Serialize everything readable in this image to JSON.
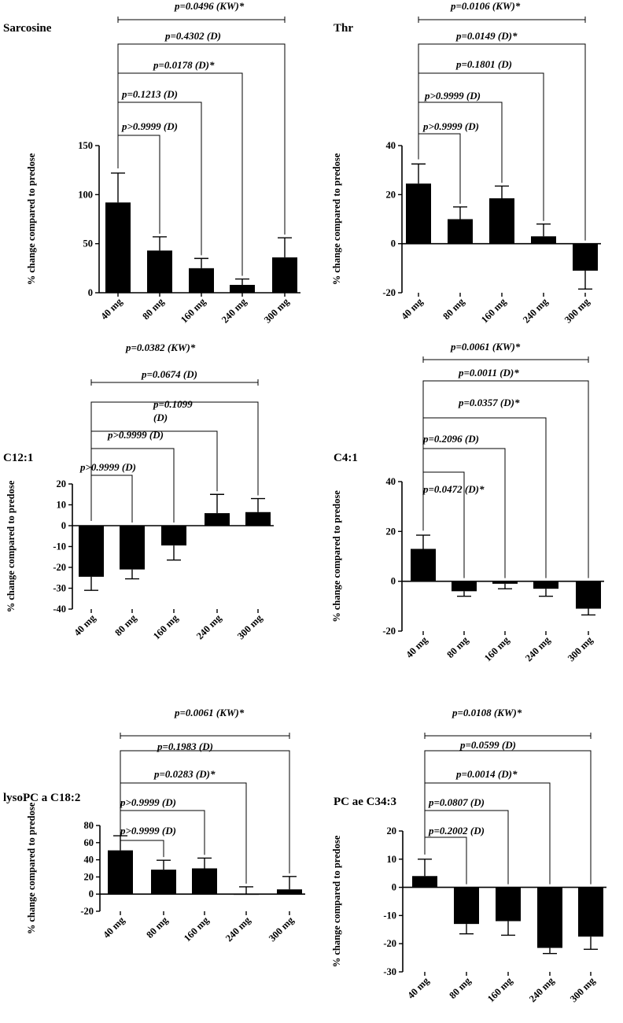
{
  "figure": {
    "categories": [
      "40 mg",
      "80 mg",
      "160 mg",
      "240 mg",
      "300 mg"
    ],
    "ylabel": "% change compared to predose"
  },
  "chart_data": [
    {
      "type": "bar",
      "title": "Sarcosine",
      "categories": [
        "40 mg",
        "80 mg",
        "160 mg",
        "240 mg",
        "300 mg"
      ],
      "values": [
        92,
        43,
        25,
        8,
        36
      ],
      "errors": [
        30,
        14,
        10,
        6,
        20
      ],
      "ylabel": "% change compared to predose",
      "ylim": [
        0,
        150
      ],
      "yticks": [
        0,
        50,
        100,
        150
      ],
      "comparisons": [
        {
          "label": "p>0.9999 (D)",
          "from": 0,
          "to": 1
        },
        {
          "label": "p=0.1213 (D)",
          "from": 0,
          "to": 2
        },
        {
          "label": "p=0.0178 (D)*",
          "from": 0,
          "to": 3
        },
        {
          "label": "p=0.4302 (D)",
          "from": 0,
          "to": 4
        },
        {
          "label": "p=0.0496 (KW)*",
          "from": 0,
          "to": 4,
          "overall": true
        }
      ]
    },
    {
      "type": "bar",
      "title": "Thr",
      "categories": [
        "40 mg",
        "80 mg",
        "160 mg",
        "240 mg",
        "300 mg"
      ],
      "values": [
        24.5,
        10,
        18.5,
        3,
        -11
      ],
      "errors": [
        8,
        5,
        5,
        5,
        7.5
      ],
      "ylabel": "% change compared to predose",
      "ylim": [
        -20,
        40
      ],
      "yticks": [
        -20,
        0,
        20,
        40
      ],
      "comparisons": [
        {
          "label": "p>0.9999 (D)",
          "from": 0,
          "to": 1
        },
        {
          "label": "p>0.9999 (D)",
          "from": 0,
          "to": 2
        },
        {
          "label": "p=0.1801 (D)",
          "from": 0,
          "to": 3
        },
        {
          "label": "p=0.0149 (D)*",
          "from": 0,
          "to": 4
        },
        {
          "label": "p=0.0106 (KW)*",
          "from": 0,
          "to": 4,
          "overall": true
        }
      ]
    },
    {
      "type": "bar",
      "title": "C12:1",
      "categories": [
        "40 mg",
        "80 mg",
        "160 mg",
        "240 mg",
        "300 mg"
      ],
      "values": [
        -24.5,
        -21,
        -9.5,
        6,
        6.5
      ],
      "errors": [
        6.5,
        4.5,
        7,
        9,
        6.5
      ],
      "ylabel": "% change compared to predose",
      "ylim": [
        -40,
        20
      ],
      "yticks": [
        -40,
        -30,
        -20,
        -10,
        0,
        10,
        20
      ],
      "comparisons": [
        {
          "label": "p>0.9999 (D)",
          "from": 0,
          "to": 1
        },
        {
          "label": "p>0.9999 (D)",
          "from": 0,
          "to": 2
        },
        {
          "label": "p=0.1099",
          "label2": "(D)",
          "from": 0,
          "to": 3
        },
        {
          "label": "p=0.0674 (D)",
          "from": 0,
          "to": 4
        },
        {
          "label": "p=0.0382 (KW)*",
          "from": 0,
          "to": 4,
          "overall": true
        }
      ]
    },
    {
      "type": "bar",
      "title": "C4:1",
      "categories": [
        "40 mg",
        "80 mg",
        "160 mg",
        "240 mg",
        "300 mg"
      ],
      "values": [
        13,
        -4,
        -1,
        -3,
        -11
      ],
      "errors": [
        5.5,
        2,
        2,
        3,
        2.5
      ],
      "ylabel": "% change compared to predose",
      "ylim": [
        -20,
        40
      ],
      "yticks": [
        -20,
        0,
        20,
        40
      ],
      "comparisons": [
        {
          "label": "p=0.0472 (D)*",
          "from": 0,
          "to": 1
        },
        {
          "label": "p=0.2096 (D)",
          "from": 0,
          "to": 2
        },
        {
          "label": "p=0.0357 (D)*",
          "from": 0,
          "to": 3
        },
        {
          "label": "p=0.0011 (D)*",
          "from": 0,
          "to": 4
        },
        {
          "label": "p=0.0061 (KW)*",
          "from": 0,
          "to": 4,
          "overall": true
        }
      ]
    },
    {
      "type": "bar",
      "title": "lysoPC a C18:2",
      "categories": [
        "40 mg",
        "80 mg",
        "160 mg",
        "240 mg",
        "300 mg"
      ],
      "values": [
        51,
        28.5,
        30,
        0.5,
        5.5
      ],
      "errors": [
        17,
        11,
        12,
        8,
        15
      ],
      "ylabel": "% change compared to predose",
      "ylim": [
        -20,
        80
      ],
      "yticks": [
        -20,
        0,
        20,
        40,
        60,
        80
      ],
      "comparisons": [
        {
          "label": "p>0.9999 (D)",
          "from": 0,
          "to": 1
        },
        {
          "label": "p>0.9999 (D)",
          "from": 0,
          "to": 2
        },
        {
          "label": "p=0.0283 (D)*",
          "from": 0,
          "to": 3
        },
        {
          "label": "p=0.1983 (D)",
          "from": 0,
          "to": 4
        },
        {
          "label": "p=0.0061 (KW)*",
          "from": 0,
          "to": 4,
          "overall": true
        }
      ]
    },
    {
      "type": "bar",
      "title": "PC ae C34:3",
      "categories": [
        "40 mg",
        "80 mg",
        "160 mg",
        "240 mg",
        "300 mg"
      ],
      "values": [
        4,
        -13,
        -12,
        -21.5,
        -17.5
      ],
      "errors": [
        6,
        3.5,
        5,
        2,
        4.5
      ],
      "ylabel": "% change compared to predose",
      "ylim": [
        -30,
        20
      ],
      "yticks": [
        -30,
        -20,
        -10,
        0,
        10,
        20
      ],
      "comparisons": [
        {
          "label": "p=0.2002 (D)",
          "from": 0,
          "to": 1
        },
        {
          "label": "p=0.0807 (D)",
          "from": 0,
          "to": 2
        },
        {
          "label": "p=0.0014 (D)*",
          "from": 0,
          "to": 3
        },
        {
          "label": "p=0.0599 (D)",
          "from": 0,
          "to": 4
        },
        {
          "label": "p=0.0108 (KW)*",
          "from": 0,
          "to": 4,
          "overall": true
        }
      ]
    }
  ]
}
